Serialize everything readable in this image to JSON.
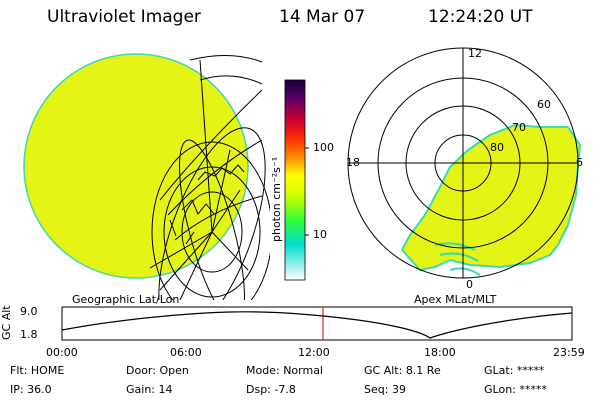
{
  "header": {
    "title": "Ultraviolet Imager",
    "date": "14 Mar 07",
    "time": "12:24:20 UT"
  },
  "colorbar": {
    "unit_label": "photon cm⁻²s⁻¹",
    "ticks": [
      "100",
      "10"
    ]
  },
  "polar_plot": {
    "labels": [
      "12",
      "60",
      "70",
      "80",
      "18",
      "6",
      "0"
    ]
  },
  "map_captions": {
    "left": "Geographic Lat/Lon",
    "right": "Apex MLat/MLT"
  },
  "altitude_plot": {
    "axis_label": "GC Alt",
    "y_ticks": [
      "9.0",
      "1.8"
    ],
    "x_ticks": [
      "00:00",
      "06:00",
      "12:00",
      "18:00",
      "23:59"
    ]
  },
  "status": {
    "row1": [
      {
        "label": "Flt:",
        "value": "HOME"
      },
      {
        "label": "Door:",
        "value": "Open"
      },
      {
        "label": "Mode:",
        "value": "Normal"
      },
      {
        "label": "GC Alt:",
        "value": "8.1 Re"
      },
      {
        "label": "GLat:",
        "value": "*****"
      }
    ],
    "row2": [
      {
        "label": "IP:",
        "value": "36.0"
      },
      {
        "label": "Gain:",
        "value": "14"
      },
      {
        "label": "Dsp:",
        "value": "-7.8"
      },
      {
        "label": "Seq:",
        "value": "39"
      },
      {
        "label": "GLon:",
        "value": "*****"
      }
    ]
  },
  "colors": {
    "aurora_fill": "#e4f516",
    "aurora_edge": "#3ed8b0",
    "marker_line": "#d03020"
  }
}
